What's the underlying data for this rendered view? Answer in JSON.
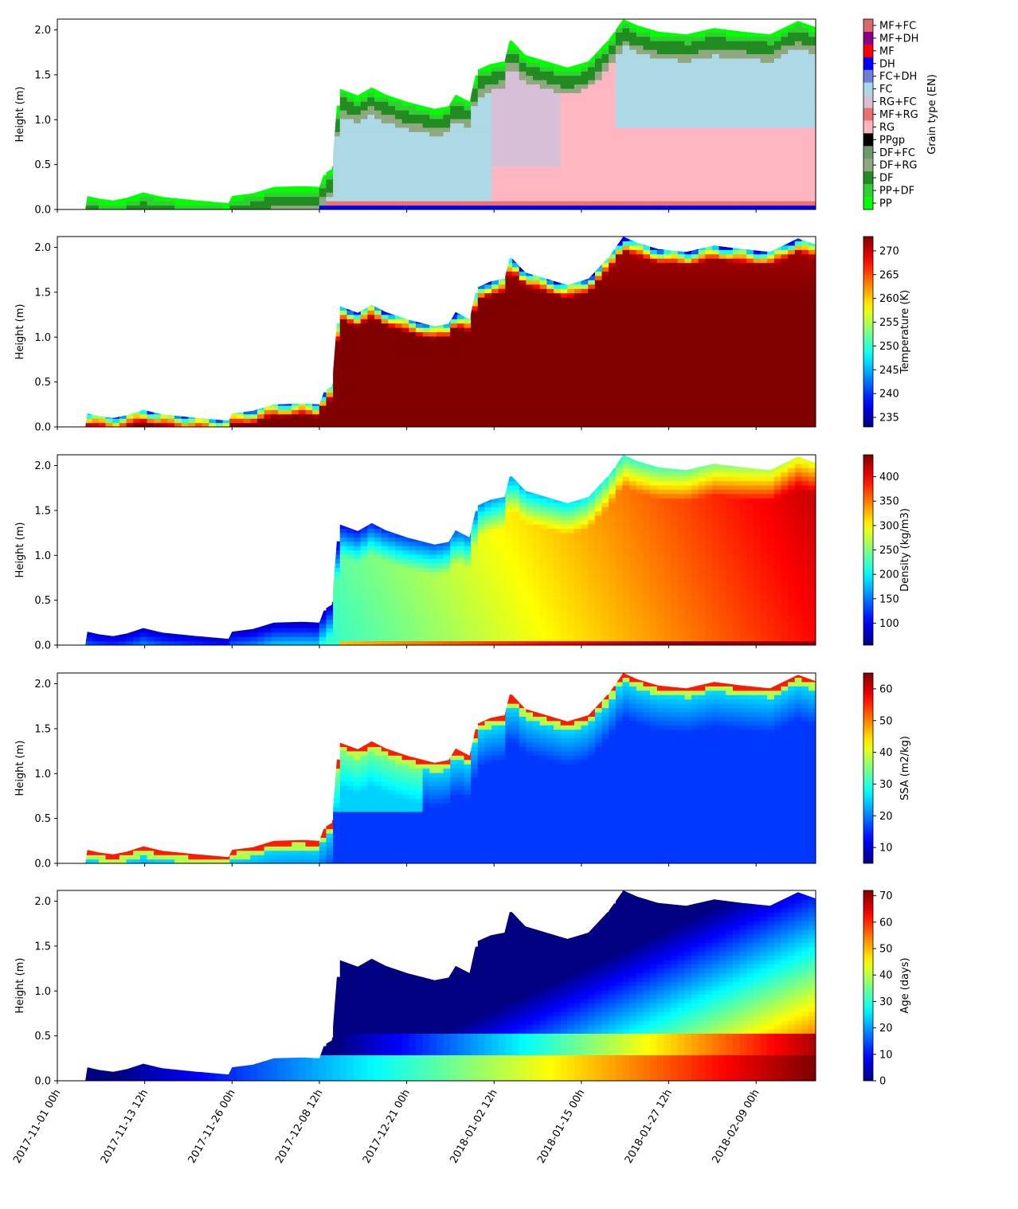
{
  "chart_data": {
    "type": "heatmap",
    "x_ticks": [
      "2017-11-01 00h",
      "2017-11-13 12h",
      "2017-11-26 00h",
      "2017-12-08 12h",
      "2017-12-21 00h",
      "2018-01-02 12h",
      "2018-01-15 00h",
      "2018-01-27 12h",
      "2018-02-09 00h"
    ],
    "x_range_days": [
      0,
      108.5
    ],
    "snow_height_m": [
      [
        4.0,
        0.0
      ],
      [
        4.3,
        0.15
      ],
      [
        6.0,
        0.12
      ],
      [
        8.0,
        0.1
      ],
      [
        10.0,
        0.13
      ],
      [
        12.3,
        0.19
      ],
      [
        15.0,
        0.14
      ],
      [
        20.0,
        0.1
      ],
      [
        24.5,
        0.07
      ],
      [
        25.0,
        0.15
      ],
      [
        28.0,
        0.18
      ],
      [
        31.0,
        0.25
      ],
      [
        35.0,
        0.26
      ],
      [
        37.5,
        0.25
      ],
      [
        38.2,
        0.4
      ],
      [
        39.3,
        0.45
      ],
      [
        40.2,
        1.35
      ],
      [
        43.0,
        1.27
      ],
      [
        45.0,
        1.36
      ],
      [
        47.0,
        1.28
      ],
      [
        50.0,
        1.2
      ],
      [
        54.0,
        1.12
      ],
      [
        56.0,
        1.15
      ],
      [
        57.0,
        1.28
      ],
      [
        59.0,
        1.2
      ],
      [
        60.0,
        1.55
      ],
      [
        62.0,
        1.62
      ],
      [
        64.0,
        1.65
      ],
      [
        64.8,
        1.9
      ],
      [
        67.0,
        1.72
      ],
      [
        70.0,
        1.65
      ],
      [
        73.0,
        1.58
      ],
      [
        76.0,
        1.65
      ],
      [
        79.0,
        1.9
      ],
      [
        81.0,
        2.12
      ],
      [
        83.0,
        2.05
      ],
      [
        86.0,
        1.98
      ],
      [
        90.0,
        1.95
      ],
      [
        94.0,
        2.02
      ],
      [
        98.0,
        1.98
      ],
      [
        102.0,
        1.95
      ],
      [
        106.0,
        2.1
      ],
      [
        108.5,
        2.03
      ]
    ],
    "panels": [
      {
        "type": "categorical",
        "ylabel": "Height (m)",
        "colorbar_label": "Grain type (EN)",
        "yticks": [
          "0.0",
          "0.5",
          "1.0",
          "1.5",
          "2.0"
        ],
        "ylim": [
          0,
          2.12
        ],
        "categories": [
          {
            "name": "MF+FC",
            "color": "#d96a6a"
          },
          {
            "name": "MF+DH",
            "color": "#8b008b"
          },
          {
            "name": "MF",
            "color": "#ff0000"
          },
          {
            "name": "DH",
            "color": "#0000ff"
          },
          {
            "name": "FC+DH",
            "color": "#6b7fd7"
          },
          {
            "name": "FC",
            "color": "#add8e6"
          },
          {
            "name": "RG+FC",
            "color": "#d8bfd8"
          },
          {
            "name": "MF+RG",
            "color": "#f07070"
          },
          {
            "name": "RG",
            "color": "#ffb6c1"
          },
          {
            "name": "PPgp",
            "color": "#000000"
          },
          {
            "name": "DF+FC",
            "color": "#6b9b6b"
          },
          {
            "name": "DF+RG",
            "color": "#8fa87f"
          },
          {
            "name": "DF",
            "color": "#228b22"
          },
          {
            "name": "PP+DF",
            "color": "#32cd32"
          },
          {
            "name": "PP",
            "color": "#00ff00"
          }
        ]
      },
      {
        "type": "continuous",
        "variable": "temperature",
        "ylabel": "Height (m)",
        "colorbar_label": "Temperature (K)",
        "yticks": [
          "0.0",
          "0.5",
          "1.0",
          "1.5",
          "2.0"
        ],
        "ylim": [
          0,
          2.12
        ],
        "vmin": 233,
        "vmax": 273,
        "cbar_ticks": [
          235,
          240,
          245,
          250,
          255,
          260,
          265,
          270
        ]
      },
      {
        "type": "continuous",
        "variable": "density",
        "ylabel": "Height (m)",
        "colorbar_label": "Density (kg/m3)",
        "yticks": [
          "0.0",
          "0.5",
          "1.0",
          "1.5",
          "2.0"
        ],
        "ylim": [
          0,
          2.12
        ],
        "vmin": 55,
        "vmax": 445,
        "cbar_ticks": [
          100,
          150,
          200,
          250,
          300,
          350,
          400
        ]
      },
      {
        "type": "continuous",
        "variable": "ssa",
        "ylabel": "Height (m)",
        "colorbar_label": "SSA (m2/kg)",
        "yticks": [
          "0.0",
          "0.5",
          "1.0",
          "1.5",
          "2.0"
        ],
        "ylim": [
          0,
          2.12
        ],
        "vmin": 5,
        "vmax": 65,
        "cbar_ticks": [
          10,
          20,
          30,
          40,
          50,
          60
        ]
      },
      {
        "type": "continuous",
        "variable": "age",
        "ylabel": "Height (m)",
        "colorbar_label": "Age (days)",
        "yticks": [
          "0.0",
          "0.5",
          "1.0",
          "1.5",
          "2.0"
        ],
        "ylim": [
          0,
          2.12
        ],
        "vmin": 0,
        "vmax": 72,
        "cbar_ticks": [
          0,
          10,
          20,
          30,
          40,
          50,
          60,
          70
        ]
      }
    ]
  }
}
